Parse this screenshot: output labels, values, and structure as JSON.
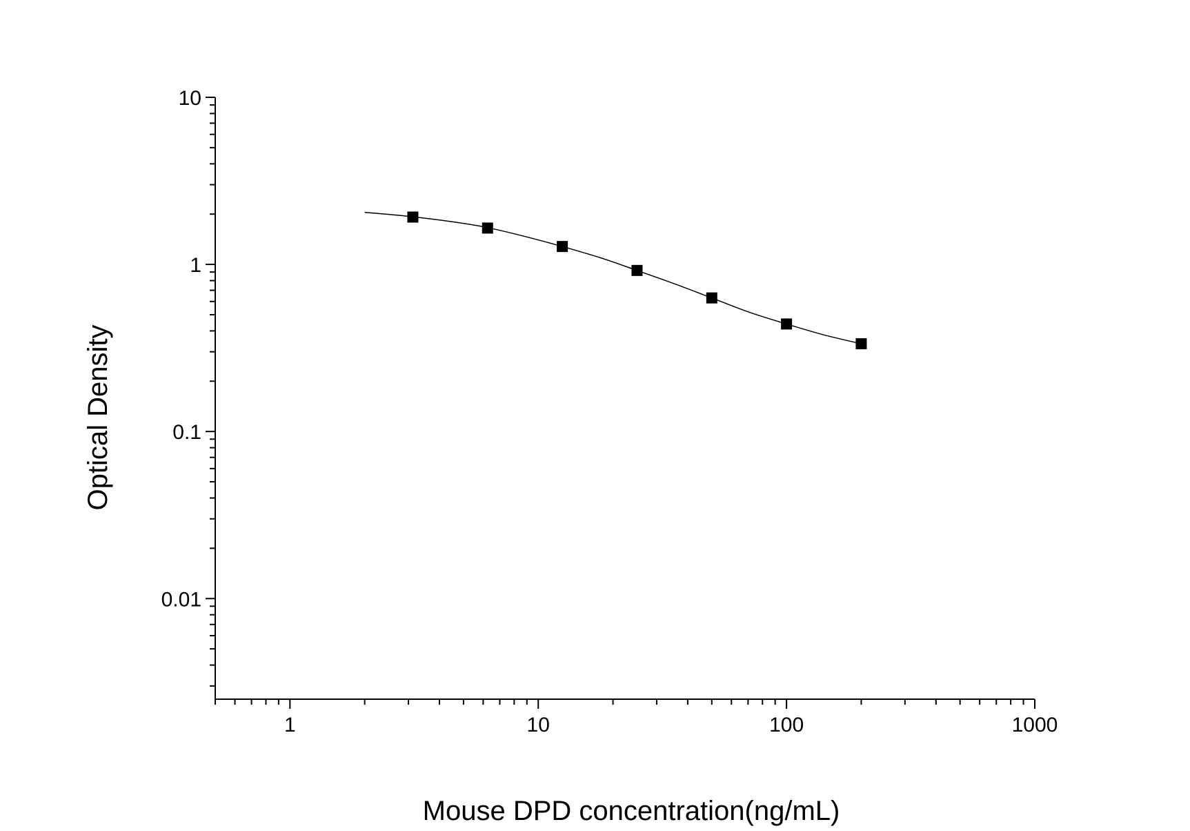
{
  "chart_data": {
    "type": "scatter",
    "xlabel": "Mouse DPD concentration(ng/mL)",
    "ylabel": "Optical Density",
    "x_scale": "log",
    "y_scale": "log",
    "xlim": [
      0.5,
      1000
    ],
    "ylim": [
      0.0025,
      10
    ],
    "x_ticks": [
      {
        "value": 1,
        "label": "1"
      },
      {
        "value": 10,
        "label": "10"
      },
      {
        "value": 100,
        "label": "100"
      },
      {
        "value": 1000,
        "label": "1000"
      }
    ],
    "y_ticks": [
      {
        "value": 10,
        "label": "10"
      },
      {
        "value": 1,
        "label": "1"
      },
      {
        "value": 0.1,
        "label": "0.1"
      },
      {
        "value": 0.01,
        "label": "0.01"
      }
    ],
    "grid": false,
    "marker": "square",
    "marker_color": "#000000",
    "line_color": "#000000",
    "series": [
      {
        "points": [
          {
            "x": 3.125,
            "y": 1.92
          },
          {
            "x": 6.25,
            "y": 1.65
          },
          {
            "x": 12.5,
            "y": 1.28
          },
          {
            "x": 25,
            "y": 0.92
          },
          {
            "x": 50,
            "y": 0.63
          },
          {
            "x": 100,
            "y": 0.44
          },
          {
            "x": 200,
            "y": 0.335
          }
        ]
      }
    ],
    "fit_curve": [
      {
        "x": 2,
        "y": 2.05
      },
      {
        "x": 3,
        "y": 1.94
      },
      {
        "x": 4.5,
        "y": 1.8
      },
      {
        "x": 6.25,
        "y": 1.66
      },
      {
        "x": 9,
        "y": 1.46
      },
      {
        "x": 12.5,
        "y": 1.28
      },
      {
        "x": 18,
        "y": 1.09
      },
      {
        "x": 25,
        "y": 0.92
      },
      {
        "x": 35,
        "y": 0.77
      },
      {
        "x": 50,
        "y": 0.63
      },
      {
        "x": 70,
        "y": 0.52
      },
      {
        "x": 100,
        "y": 0.44
      },
      {
        "x": 140,
        "y": 0.38
      },
      {
        "x": 200,
        "y": 0.335
      }
    ]
  }
}
